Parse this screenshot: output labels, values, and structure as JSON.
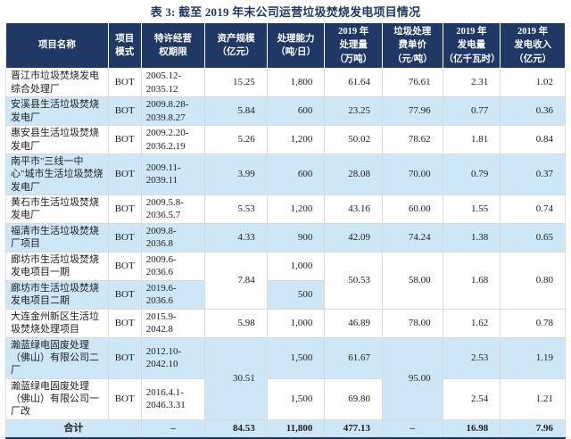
{
  "title": "表 3: 截至 2019 年末公司运营垃圾焚烧发电项目情况",
  "colors": {
    "header_bg": "#1f3864",
    "alt_row_bg": "#cde7f6",
    "title_text": "#1f3864",
    "body_text": "#212121",
    "grid_line": "#d9d9d9",
    "bottom_rule": "#1f3864"
  },
  "table": {
    "headers": [
      "项目名称",
      "项目\n模式",
      "特许经营\n权期限",
      "资产规模\n（亿元）",
      "处理能力\n（吨/日）",
      "2019 年\n处理量\n（万吨）",
      "垃圾处理\n费单价\n（元/吨）",
      "2019 年\n发电量\n（亿千瓦时）",
      "2019 年\n发电收入\n（亿元）"
    ],
    "rows": [
      {
        "alt": false,
        "cells": [
          "晋江市垃圾焚烧发电综合处理厂",
          "BOT",
          "2005.12-\n2035.12",
          "15.25",
          "1,800",
          "61.64",
          "76.61",
          "2.31",
          "1.02"
        ]
      },
      {
        "alt": true,
        "cells": [
          "安溪县生活垃圾焚烧发电厂",
          "BOT",
          "2009.8.28-\n2039.8.27",
          "5.84",
          "600",
          "23.25",
          "77.96",
          "0.77",
          "0.36"
        ]
      },
      {
        "alt": false,
        "cells": [
          "惠安县生活垃圾焚烧发电厂",
          "BOT",
          "2009.2.20-\n2036.2.19",
          "5.26",
          "1,200",
          "50.02",
          "78.62",
          "1.81",
          "0.84"
        ]
      },
      {
        "alt": true,
        "cells": [
          "南平市\"三线一中心\"城市生活垃圾焚烧发电厂",
          "BOT",
          "2009.11-\n2039.11",
          "3.99",
          "600",
          "28.08",
          "70.00",
          "0.79",
          "0.37"
        ]
      },
      {
        "alt": false,
        "cells": [
          "黄石市生活垃圾焚烧发电厂",
          "BOT",
          "2009.5.8-\n2036.5.7",
          "5.53",
          "1,200",
          "43.16",
          "60.00",
          "1.55",
          "0.74"
        ]
      },
      {
        "alt": true,
        "cells": [
          "福清市生活垃圾焚烧厂项目",
          "BOT",
          "2009.8-\n2036.8",
          "4.33",
          "900",
          "42.09",
          "74.24",
          "1.38",
          "0.65"
        ]
      },
      {
        "alt": false,
        "cells": [
          "廊坊市生活垃圾焚烧发电项目一期",
          "BOT",
          "2009.6-\n2036.6",
          {
            "t": "7.84",
            "rs": 2
          },
          "1,000",
          {
            "t": "50.53",
            "rs": 2
          },
          {
            "t": "58.00",
            "rs": 2
          },
          {
            "t": "1.68",
            "rs": 2
          },
          {
            "t": "0.80",
            "rs": 2
          }
        ]
      },
      {
        "alt": true,
        "cells": [
          "廊坊市生活垃圾焚烧发电项目二期",
          "BOT",
          "2019.6-\n2036.6",
          null,
          "500",
          null,
          null,
          null,
          null
        ]
      },
      {
        "alt": false,
        "cells": [
          "大连金州新区生活垃圾焚烧处理项目",
          "BOT",
          "2015.9-\n2042.8",
          "5.98",
          "1,000",
          "46.89",
          "78.00",
          "1.62",
          "0.78"
        ]
      },
      {
        "alt": true,
        "cells": [
          "瀚蓝绿电固废处理（佛山）有限公司二厂",
          "BOT",
          "2012.10-\n2042.10",
          {
            "t": "30.51",
            "rs": 2
          },
          "1,500",
          "61.67",
          {
            "t": "95.00",
            "rs": 2
          },
          "2.53",
          "1.19"
        ]
      },
      {
        "alt": false,
        "cells": [
          "瀚蓝绿电固废处理（佛山）有限公司一厂改",
          "BOT",
          "2016.4.1-\n2046.3.31",
          null,
          "1,500",
          "69.80",
          null,
          "2.54",
          "1.21"
        ]
      },
      {
        "alt": true,
        "total": true,
        "cells": [
          {
            "t": "合计",
            "cs": 2,
            "align": "ctr"
          },
          null,
          {
            "t": "–",
            "align": "ctr"
          },
          "84.53",
          "11,800",
          "477.13",
          {
            "t": "–",
            "align": "ctr"
          },
          "16.98",
          "7.96"
        ]
      }
    ]
  }
}
